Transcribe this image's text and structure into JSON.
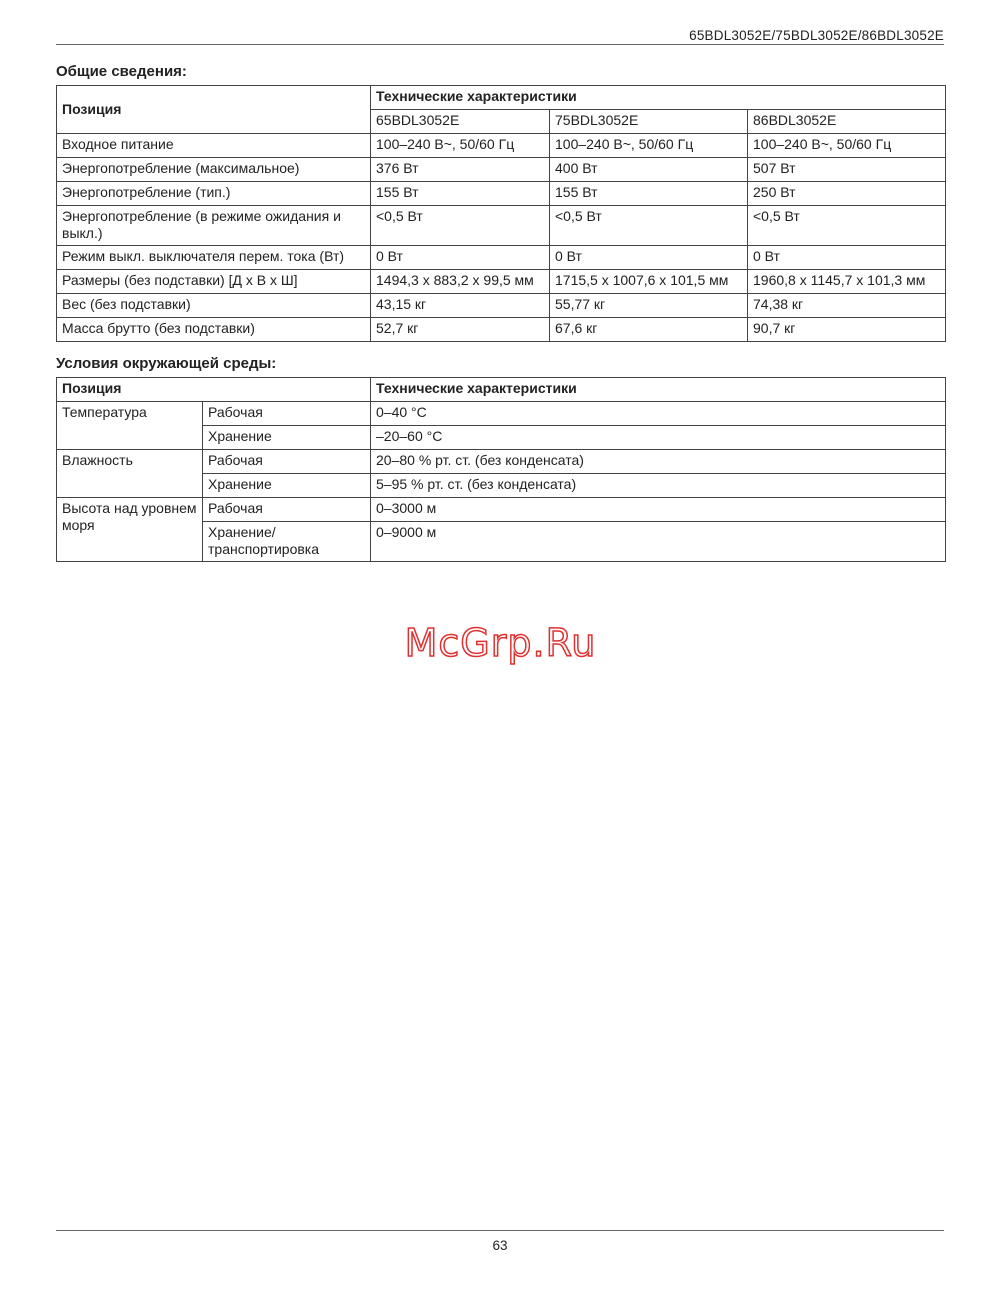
{
  "header": {
    "models": "65BDL3052E/75BDL3052E/86BDL3052E"
  },
  "general": {
    "title": "Общие сведения:",
    "col_position": "Позиция",
    "col_specs": "Технические характеристики",
    "models": [
      "65BDL3052E",
      "75BDL3052E",
      "86BDL3052E"
    ],
    "rows": [
      {
        "label": "Входное питание",
        "values": [
          "100–240 В~, 50/60 Гц",
          "100–240 В~, 50/60 Гц",
          "100–240 В~, 50/60 Гц"
        ]
      },
      {
        "label": "Энергопотребление (максимальное)",
        "values": [
          "376 Вт",
          "400 Вт",
          "507 Вт"
        ]
      },
      {
        "label": "Энергопотребление (тип.)",
        "values": [
          "155 Вт",
          "155 Вт",
          "250 Вт"
        ]
      },
      {
        "label": "Энергопотребление (в режиме ожидания и выкл.)",
        "values": [
          "<0,5 Вт",
          "<0,5 Вт",
          "<0,5 Вт"
        ]
      },
      {
        "label": "Режим выкл. выключателя перем. тока (Вт)",
        "values": [
          "0 Вт",
          "0 Вт",
          "0 Вт"
        ]
      },
      {
        "label": "Размеры (без подставки) [Д x В x Ш]",
        "values": [
          "1494,3 x 883,2 x 99,5 мм",
          "1715,5 x 1007,6 x 101,5 мм",
          "1960,8 x 1145,7 x 101,3 мм"
        ]
      },
      {
        "label": "Вес (без подставки)",
        "values": [
          "43,15 кг",
          "55,77 кг",
          "74,38 кг"
        ]
      },
      {
        "label": "Масса брутто (без подставки)",
        "values": [
          "52,7 кг",
          "67,6 кг",
          "90,7 кг"
        ]
      }
    ]
  },
  "environment": {
    "title": "Условия окружающей среды:",
    "col_position": "Позиция",
    "col_specs": "Технические характеристики",
    "groups": [
      {
        "label": "Температура",
        "rows": [
          {
            "sub": "Рабочая",
            "value": "0–40 °C"
          },
          {
            "sub": "Хранение",
            "value": "–20–60 °C"
          }
        ]
      },
      {
        "label": "Влажность",
        "rows": [
          {
            "sub": "Рабочая",
            "value": "20–80 % рт. ст. (без конденсата)"
          },
          {
            "sub": "Хранение",
            "value": "5–95 % рт. ст. (без конденсата)"
          }
        ]
      },
      {
        "label": "Высота над уровнем моря",
        "rows": [
          {
            "sub": "Рабочая",
            "value": "0–3000 м"
          },
          {
            "sub": "Хранение/ транспортировка",
            "value": "0–9000 м"
          }
        ]
      }
    ]
  },
  "watermark": "McGrp.Ru",
  "footer": {
    "page": "63"
  }
}
